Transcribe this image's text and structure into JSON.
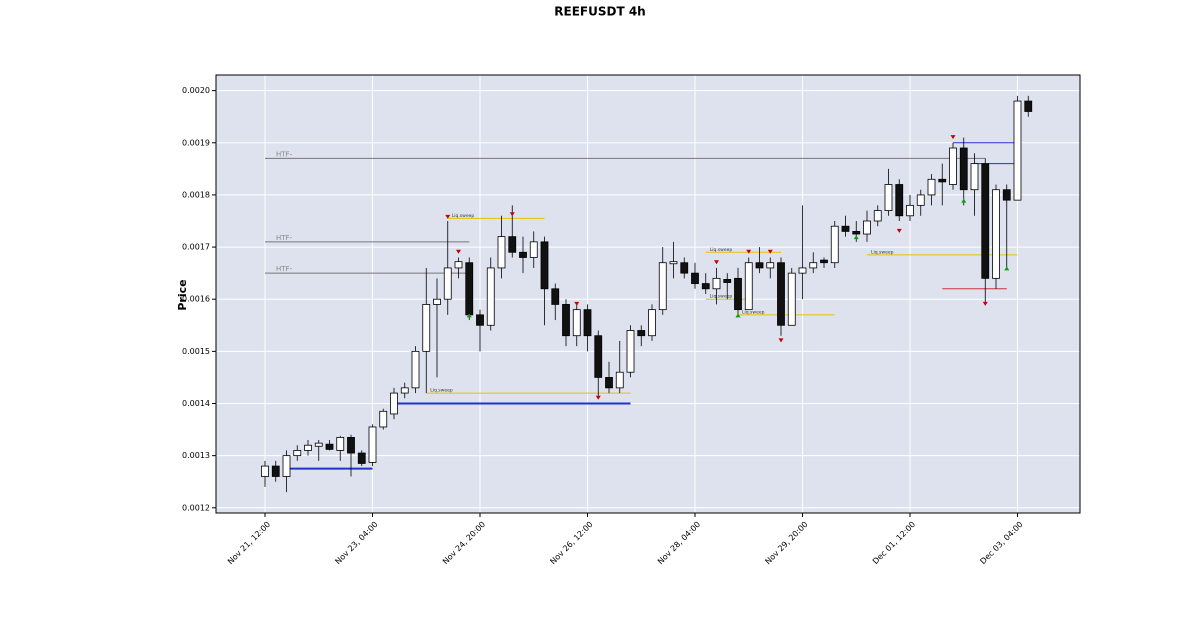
{
  "chart_data": {
    "type": "candlestick",
    "title": "REEFUSDT 4h",
    "ylabel": "Price",
    "categories": [
      "Nov 21, 12:00",
      null,
      null,
      null,
      null,
      null,
      null,
      null,
      null,
      null,
      "Nov 23, 04:00",
      null,
      null,
      null,
      null,
      null,
      null,
      null,
      null,
      null,
      "Nov 24, 20:00",
      null,
      null,
      null,
      null,
      null,
      null,
      null,
      null,
      null,
      "Nov 26, 12:00",
      null,
      null,
      null,
      null,
      null,
      null,
      null,
      null,
      null,
      "Nov 28, 04:00",
      null,
      null,
      null,
      null,
      null,
      null,
      null,
      null,
      null,
      "Nov 29, 20:00",
      null,
      null,
      null,
      null,
      null,
      null,
      null,
      null,
      null,
      "Dec 01, 12:00",
      null,
      null,
      null,
      null,
      null,
      null,
      null,
      null,
      null,
      "Dec 03, 04:00",
      null
    ],
    "open": [
      0.00126,
      0.00128,
      0.00126,
      0.0013,
      0.00131,
      0.001318,
      0.001322,
      0.00131,
      0.001335,
      0.001305,
      0.001287,
      0.001355,
      0.00138,
      0.00142,
      0.00143,
      0.0015,
      0.00159,
      0.0016,
      0.00166,
      0.00167,
      0.00157,
      0.00155,
      0.00166,
      0.00172,
      0.00169,
      0.00168,
      0.00171,
      0.00162,
      0.00159,
      0.00153,
      0.00158,
      0.00153,
      0.00145,
      0.00143,
      0.00146,
      0.00154,
      0.00153,
      0.00158,
      0.001668,
      0.00167,
      0.00165,
      0.00163,
      0.00162,
      0.001638,
      0.00164,
      0.00158,
      0.00167,
      0.00166,
      0.00167,
      0.00155,
      0.00165,
      0.00166,
      0.001675,
      0.00167,
      0.00174,
      0.00173,
      0.001725,
      0.00175,
      0.00177,
      0.00182,
      0.00176,
      0.00178,
      0.0018,
      0.00183,
      0.00182,
      0.00189,
      0.00181,
      0.00186,
      0.00164,
      0.00181,
      0.00179,
      0.00198
    ],
    "high": [
      0.00129,
      0.00129,
      0.00131,
      0.00132,
      0.00133,
      0.00133,
      0.00133,
      0.001338,
      0.00134,
      0.00131,
      0.00136,
      0.00139,
      0.00143,
      0.00144,
      0.00151,
      0.00166,
      0.00164,
      0.00175,
      0.00168,
      0.00168,
      0.00158,
      0.00168,
      0.00176,
      0.00178,
      0.00172,
      0.00173,
      0.00172,
      0.00163,
      0.0016,
      0.00159,
      0.00159,
      0.00154,
      0.00148,
      0.00152,
      0.00155,
      0.00155,
      0.00159,
      0.0017,
      0.00171,
      0.00168,
      0.00167,
      0.00165,
      0.00166,
      0.00165,
      0.00166,
      0.00168,
      0.0017,
      0.00168,
      0.00168,
      0.00166,
      0.00178,
      0.00169,
      0.00168,
      0.00175,
      0.00176,
      0.00175,
      0.00177,
      0.00178,
      0.00185,
      0.00183,
      0.0018,
      0.00181,
      0.00184,
      0.00186,
      0.0019,
      0.00191,
      0.00188,
      0.00187,
      0.00182,
      0.00182,
      0.00199,
      0.00199
    ],
    "low": [
      0.00124,
      0.00125,
      0.00123,
      0.00129,
      0.0013,
      0.00129,
      0.00131,
      0.00129,
      0.00126,
      0.00128,
      0.00128,
      0.00135,
      0.00137,
      0.00141,
      0.00142,
      0.00142,
      0.00145,
      0.00157,
      0.00164,
      0.00156,
      0.0015,
      0.00154,
      0.00164,
      0.00168,
      0.00165,
      0.00166,
      0.00155,
      0.00156,
      0.00151,
      0.00151,
      0.0015,
      0.00141,
      0.00142,
      0.00142,
      0.00145,
      0.00151,
      0.00152,
      0.00157,
      0.00164,
      0.00164,
      0.00162,
      0.00161,
      0.00159,
      0.0016,
      0.00157,
      0.00158,
      0.00165,
      0.00164,
      0.00153,
      0.00155,
      0.0016,
      0.00165,
      0.00166,
      0.00166,
      0.00172,
      0.00171,
      0.00171,
      0.00174,
      0.00176,
      0.00175,
      0.00175,
      0.00176,
      0.00178,
      0.00178,
      0.00181,
      0.00178,
      0.00176,
      0.00159,
      0.00162,
      0.00166,
      0.00179,
      0.00195
    ],
    "close": [
      0.00128,
      0.00126,
      0.0013,
      0.00131,
      0.00132,
      0.001324,
      0.001312,
      0.001335,
      0.001305,
      0.001285,
      0.001355,
      0.001385,
      0.00142,
      0.00143,
      0.0015,
      0.00159,
      0.0016,
      0.00166,
      0.001672,
      0.00157,
      0.00155,
      0.00166,
      0.00172,
      0.00169,
      0.00168,
      0.00171,
      0.00162,
      0.00159,
      0.00153,
      0.00158,
      0.00153,
      0.00145,
      0.00143,
      0.00146,
      0.00154,
      0.00153,
      0.00158,
      0.00167,
      0.001672,
      0.00165,
      0.00163,
      0.00162,
      0.00164,
      0.001632,
      0.00158,
      0.00167,
      0.00166,
      0.00167,
      0.00155,
      0.00165,
      0.00166,
      0.00167,
      0.00167,
      0.00174,
      0.00173,
      0.001725,
      0.00175,
      0.00177,
      0.00182,
      0.00176,
      0.00178,
      0.0018,
      0.00183,
      0.001825,
      0.00189,
      0.00181,
      0.00186,
      0.00164,
      0.00181,
      0.00179,
      0.00198,
      0.00196
    ],
    "ylim": [
      0.00119,
      0.00203
    ],
    "yticks": [
      0.0012,
      0.0013,
      0.0014,
      0.0015,
      0.0016,
      0.0017,
      0.0018,
      0.0019,
      {
        "value": 0.002,
        "label": "0.0020"
      }
    ],
    "grid": true,
    "up_color": "#ffffff",
    "down_color": "#111111",
    "levels": [
      {
        "label": "HTF-",
        "value": 0.00187,
        "from": 0,
        "to": 67,
        "color": "#777777"
      },
      {
        "label": "HTF-",
        "value": 0.00171,
        "from": 0,
        "to": 19,
        "color": "#777777"
      },
      {
        "label": "HTF-",
        "value": 0.00165,
        "from": 0,
        "to": 19,
        "color": "#777777"
      },
      {
        "label": "Liq.sweep",
        "value": 0.001755,
        "from": 17,
        "to": 26,
        "color": "#e6c200"
      },
      {
        "label": "Liq.sweep",
        "value": 0.00142,
        "from": 15,
        "to": 34,
        "color": "#e6c200"
      },
      {
        "label": "Liq.sweep",
        "value": 0.00169,
        "from": 41,
        "to": 48,
        "color": "#e6c200"
      },
      {
        "label": "Liq.sweep",
        "value": 0.0016,
        "from": 41,
        "to": 45,
        "color": "#e6c200"
      },
      {
        "label": "Liq.sweep",
        "value": 0.00157,
        "from": 44,
        "to": 53,
        "color": "#e6c200"
      },
      {
        "label": "Liq.sweep",
        "value": 0.001685,
        "from": 56,
        "to": 70,
        "color": "#e6c200"
      },
      {
        "value": 0.001275,
        "from": 2,
        "to": 10,
        "color": "#2233cc"
      },
      {
        "value": 0.0014,
        "from": 12,
        "to": 34,
        "color": "#2233cc"
      },
      {
        "value": 0.0019,
        "from": 64,
        "to": 70,
        "color": "#2233cc"
      },
      {
        "value": 0.00186,
        "from": 66,
        "to": 70,
        "color": "#2233cc"
      },
      {
        "value": 0.00162,
        "from": 63,
        "to": 69,
        "color": "#cc3333"
      }
    ],
    "markers": [
      {
        "index": 17,
        "value": 0.001757,
        "direction": "down",
        "color": "#cc0000"
      },
      {
        "index": 18,
        "value": 0.00169,
        "direction": "down",
        "color": "#cc0000"
      },
      {
        "index": 23,
        "value": 0.001762,
        "direction": "down",
        "color": "#cc0000"
      },
      {
        "index": 19,
        "value": 0.00157,
        "direction": "up",
        "color": "#119911"
      },
      {
        "index": 29,
        "value": 0.00159,
        "direction": "down",
        "color": "#cc0000"
      },
      {
        "index": 31,
        "value": 0.00141,
        "direction": "down",
        "color": "#cc0000"
      },
      {
        "index": 42,
        "value": 0.00167,
        "direction": "down",
        "color": "#cc0000"
      },
      {
        "index": 45,
        "value": 0.00169,
        "direction": "down",
        "color": "#cc0000"
      },
      {
        "index": 47,
        "value": 0.00169,
        "direction": "down",
        "color": "#cc0000"
      },
      {
        "index": 44,
        "value": 0.00157,
        "direction": "up",
        "color": "#119911"
      },
      {
        "index": 48,
        "value": 0.00152,
        "direction": "down",
        "color": "#cc0000"
      },
      {
        "index": 55,
        "value": 0.00172,
        "direction": "up",
        "color": "#119911"
      },
      {
        "index": 59,
        "value": 0.00173,
        "direction": "down",
        "color": "#cc0000"
      },
      {
        "index": 64,
        "value": 0.00191,
        "direction": "down",
        "color": "#cc0000"
      },
      {
        "index": 65,
        "value": 0.00179,
        "direction": "up",
        "color": "#119911"
      },
      {
        "index": 67,
        "value": 0.00159,
        "direction": "down",
        "color": "#cc0000"
      },
      {
        "index": 69,
        "value": 0.00166,
        "direction": "up",
        "color": "#119911"
      }
    ]
  }
}
